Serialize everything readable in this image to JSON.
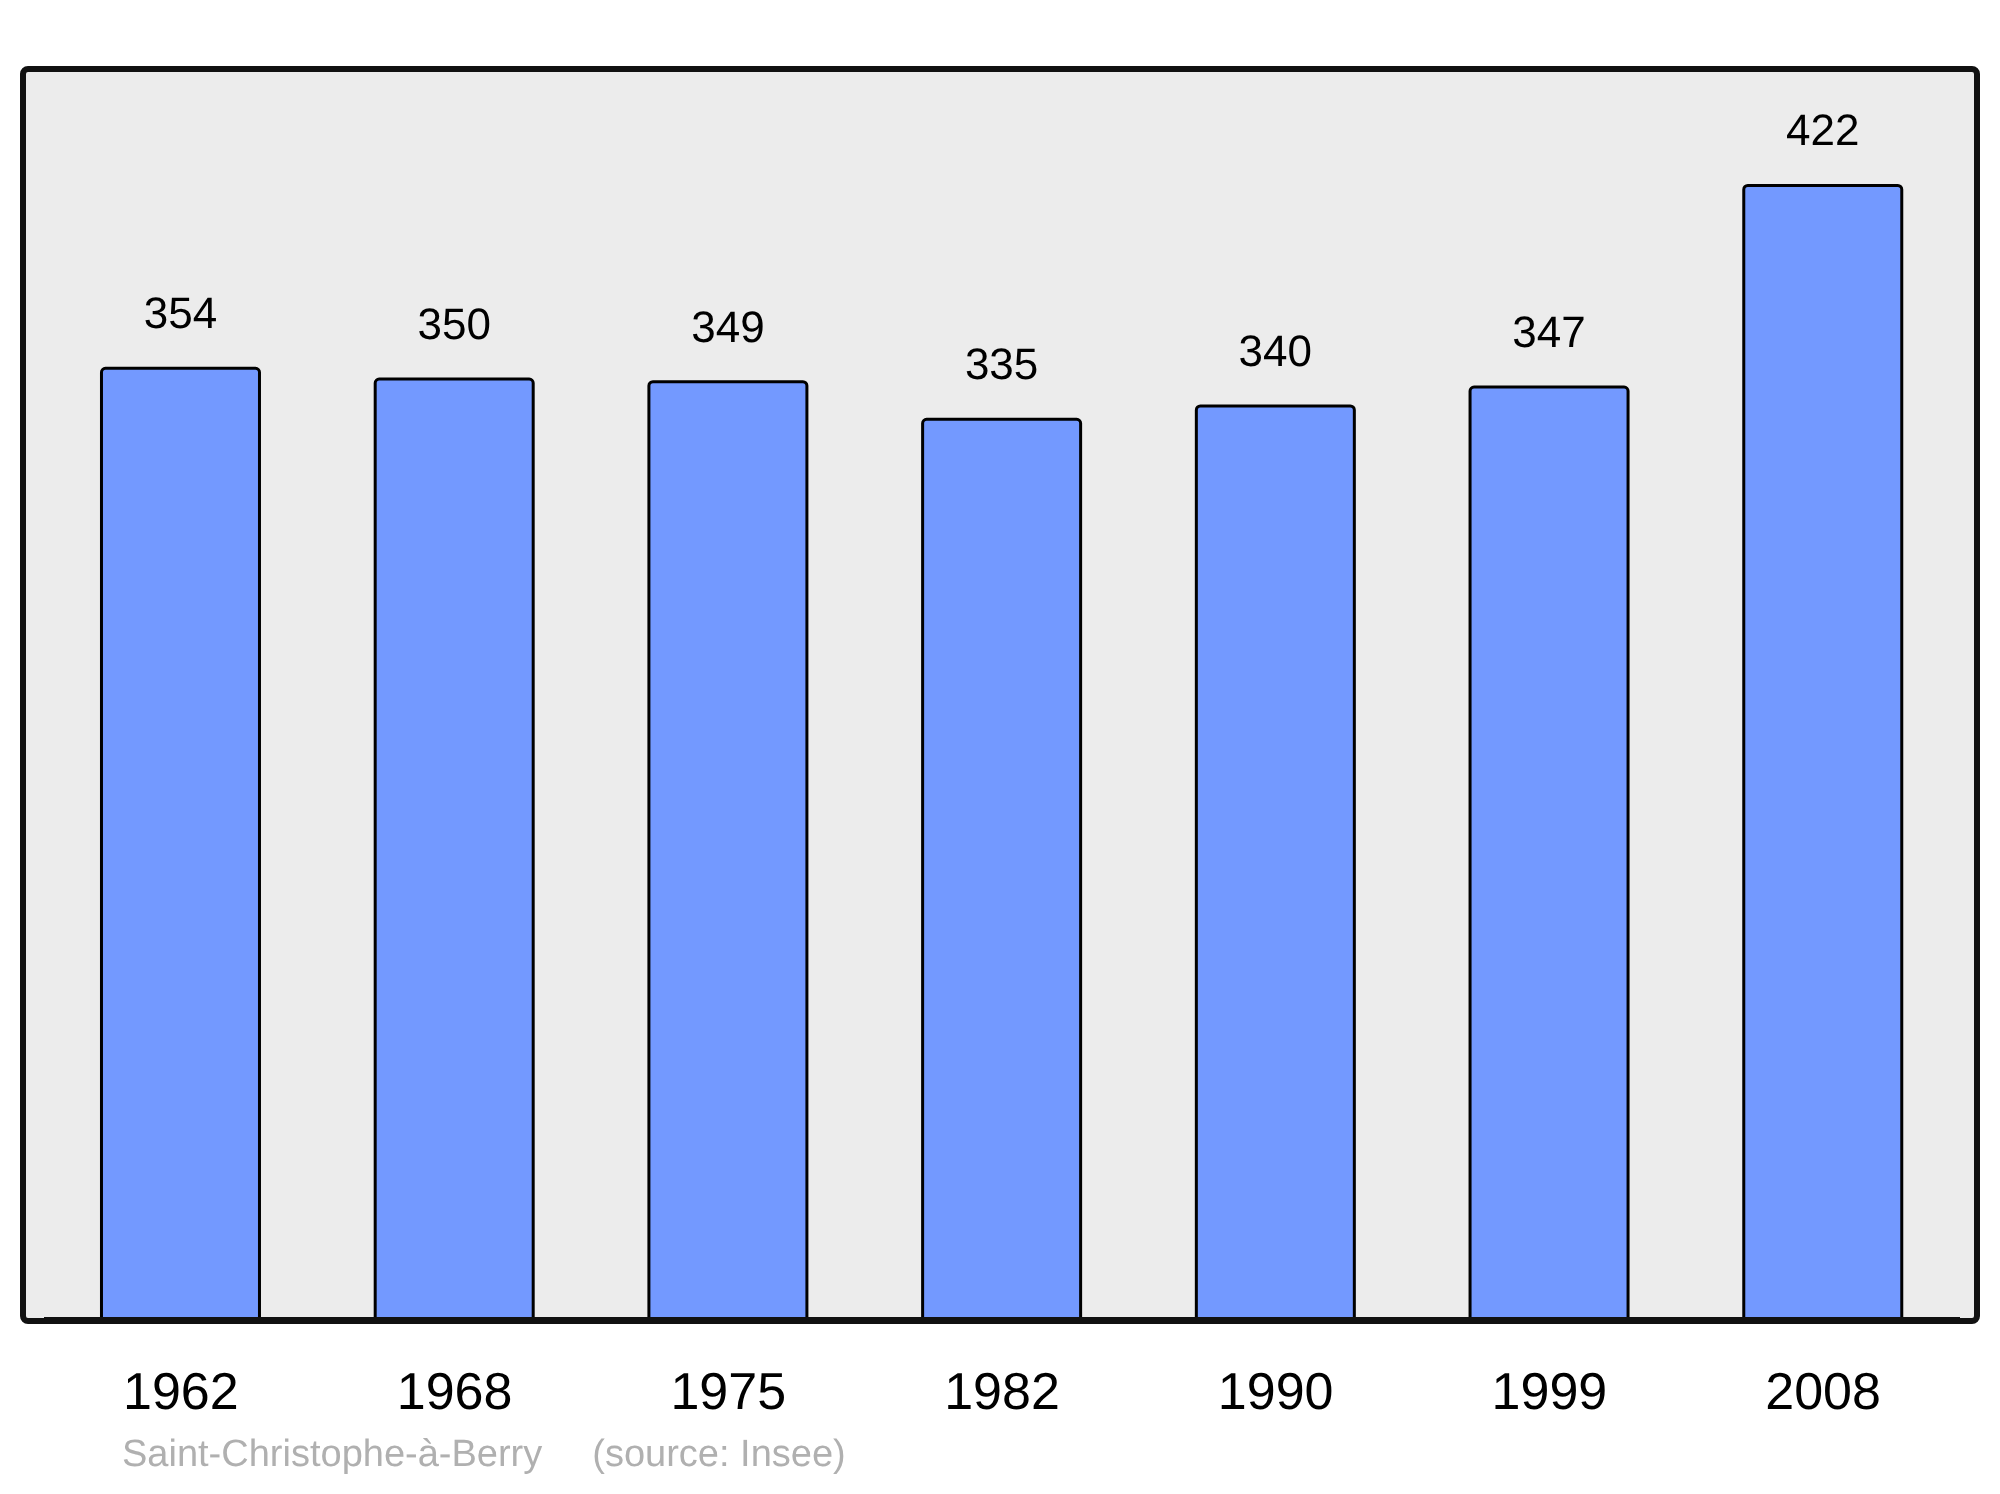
{
  "chart_data": {
    "type": "bar",
    "categories": [
      "1962",
      "1968",
      "1975",
      "1982",
      "1990",
      "1999",
      "2008"
    ],
    "values": [
      354,
      350,
      349,
      335,
      340,
      347,
      422
    ],
    "color": "#7399ff",
    "data_labels": true,
    "annotations": [
      "Saint-Christophe-à-Berry",
      "(source: Insee)"
    ]
  }
}
